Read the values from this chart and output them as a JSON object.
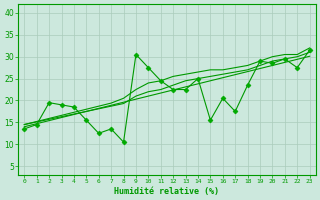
{
  "background_color": "#cce8dd",
  "grid_color": "#aaccbb",
  "line_color": "#009900",
  "marker_color": "#00aa00",
  "xlabel": "Humidité relative (%)",
  "xlabel_color": "#009900",
  "tick_color": "#009900",
  "ylim": [
    3,
    42
  ],
  "xlim": [
    -0.5,
    23.5
  ],
  "yticks": [
    5,
    10,
    15,
    20,
    25,
    30,
    35,
    40
  ],
  "xticks": [
    0,
    1,
    2,
    3,
    4,
    5,
    6,
    7,
    8,
    9,
    10,
    11,
    12,
    13,
    14,
    15,
    16,
    17,
    18,
    19,
    20,
    21,
    22,
    23
  ],
  "jagged": [
    13.5,
    14.5,
    19.5,
    19.0,
    18.5,
    15.5,
    12.5,
    13.5,
    10.5,
    30.5,
    27.5,
    24.5,
    22.5,
    22.5,
    25.0,
    15.5,
    20.5,
    17.5,
    23.5,
    29.0,
    28.5,
    29.5,
    27.5,
    31.5
  ],
  "trend1": [
    14.0,
    14.7,
    15.4,
    16.1,
    16.8,
    17.5,
    18.2,
    18.9,
    19.6,
    20.3,
    21.0,
    21.7,
    22.4,
    23.1,
    23.8,
    24.5,
    25.2,
    25.9,
    26.6,
    27.3,
    28.0,
    28.7,
    29.4,
    30.1
  ],
  "trend2": [
    14.5,
    15.1,
    15.7,
    16.3,
    16.9,
    17.5,
    18.1,
    18.7,
    19.3,
    21.0,
    22.0,
    22.5,
    23.5,
    24.5,
    25.0,
    25.5,
    26.0,
    26.5,
    27.0,
    28.0,
    29.0,
    29.5,
    30.0,
    31.0
  ],
  "trend3": [
    14.5,
    15.2,
    15.9,
    16.6,
    17.3,
    18.0,
    18.7,
    19.4,
    20.5,
    22.5,
    24.0,
    24.5,
    25.5,
    26.0,
    26.5,
    27.0,
    27.0,
    27.5,
    28.0,
    29.0,
    30.0,
    30.5,
    30.5,
    32.0
  ]
}
